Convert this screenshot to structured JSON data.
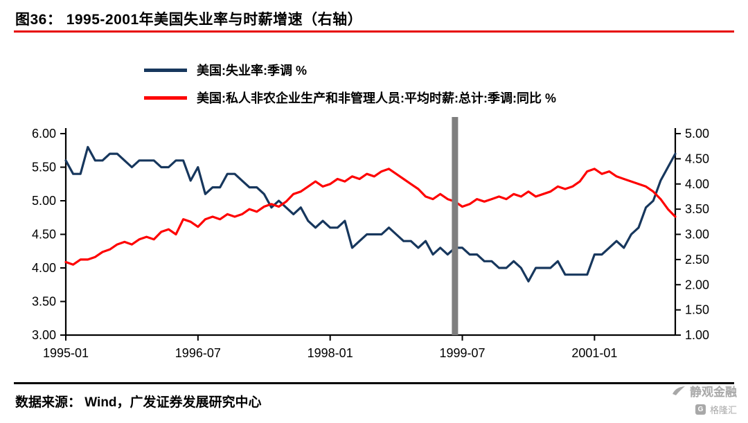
{
  "header": {
    "title": "图36：  1995-2001年美国失业率与时薪增速（右轴）"
  },
  "footer": {
    "source": "数据来源： Wind，广发证券发展研究中心",
    "watermark_main": "静观金融",
    "watermark_sub": "格隆汇",
    "watermark_logo_letter": "G"
  },
  "colors": {
    "accent_red": "#e60000",
    "unemployment_line": "#17375d",
    "wage_line": "#fe0000",
    "event_bar_grey": "#7f7f7f",
    "axis_black": "#000000",
    "watermark_grey": "#a8a8a8"
  },
  "chart_data": {
    "type": "line",
    "title": "1995-2001年美国失业率与时薪增速（右轴）",
    "x_start_month": "1995-01",
    "x_end_month": "2001-12",
    "x_tick_labels": [
      "1995-01",
      "1996-07",
      "1998-01",
      "1999-07",
      "2001-01"
    ],
    "x_tick_month_indices": [
      0,
      18,
      36,
      54,
      72
    ],
    "left_axis": {
      "min": 3.0,
      "max": 6.0,
      "step": 0.5,
      "label_format": "2dp"
    },
    "right_axis": {
      "min": 1.0,
      "max": 5.0,
      "step": 0.5,
      "label_format": "2dp"
    },
    "grid": false,
    "legend_position": "top",
    "vline": {
      "month_index": 53,
      "month": "1999-06",
      "color": "#7f7f7f"
    },
    "series": [
      {
        "name": "美国:失业率:季调 %",
        "axis": "left",
        "color": "#17375d",
        "values": [
          5.6,
          5.4,
          5.4,
          5.8,
          5.6,
          5.6,
          5.7,
          5.7,
          5.6,
          5.5,
          5.6,
          5.6,
          5.6,
          5.5,
          5.5,
          5.6,
          5.6,
          5.3,
          5.5,
          5.1,
          5.2,
          5.2,
          5.4,
          5.4,
          5.3,
          5.2,
          5.2,
          5.1,
          4.9,
          5.0,
          4.9,
          4.8,
          4.9,
          4.7,
          4.6,
          4.7,
          4.6,
          4.6,
          4.7,
          4.3,
          4.4,
          4.5,
          4.5,
          4.5,
          4.6,
          4.5,
          4.4,
          4.4,
          4.3,
          4.4,
          4.2,
          4.3,
          4.2,
          4.3,
          4.3,
          4.2,
          4.2,
          4.1,
          4.1,
          4.0,
          4.0,
          4.1,
          4.0,
          3.8,
          4.0,
          4.0,
          4.0,
          4.1,
          3.9,
          3.9,
          3.9,
          3.9,
          4.2,
          4.2,
          4.3,
          4.4,
          4.3,
          4.5,
          4.6,
          4.9,
          5.0,
          5.3,
          5.5,
          5.7
        ]
      },
      {
        "name": "美国:私人非农企业生产和非管理人员:平均时薪:总计:季调:同比 %",
        "axis": "right",
        "color": "#fe0000",
        "values": [
          2.45,
          2.4,
          2.5,
          2.5,
          2.55,
          2.65,
          2.7,
          2.8,
          2.85,
          2.8,
          2.9,
          2.95,
          2.9,
          3.05,
          3.1,
          3.0,
          3.3,
          3.25,
          3.15,
          3.3,
          3.35,
          3.3,
          3.4,
          3.35,
          3.4,
          3.5,
          3.45,
          3.55,
          3.6,
          3.55,
          3.65,
          3.8,
          3.85,
          3.95,
          4.05,
          3.95,
          4.0,
          4.1,
          4.05,
          4.15,
          4.1,
          4.2,
          4.15,
          4.25,
          4.3,
          4.2,
          4.1,
          4.0,
          3.9,
          3.75,
          3.7,
          3.8,
          3.7,
          3.65,
          3.55,
          3.6,
          3.7,
          3.65,
          3.7,
          3.75,
          3.7,
          3.8,
          3.75,
          3.85,
          3.75,
          3.8,
          3.85,
          3.95,
          3.9,
          3.95,
          4.05,
          4.25,
          4.3,
          4.2,
          4.25,
          4.15,
          4.1,
          4.05,
          4.0,
          3.95,
          3.85,
          3.7,
          3.5,
          3.35
        ]
      }
    ]
  }
}
